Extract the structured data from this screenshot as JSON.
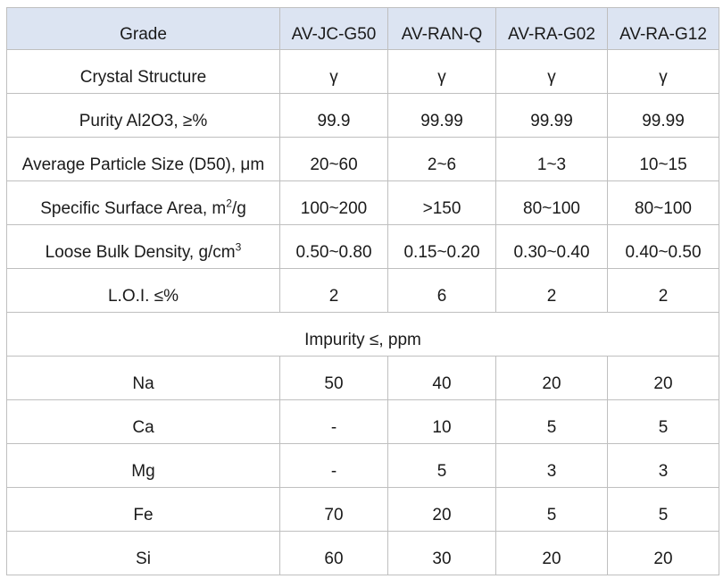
{
  "header": {
    "label": "Grade",
    "grades": [
      "AV-JC-G50",
      "AV-RAN-Q",
      "AV-RA-G02",
      "AV-RA-G12"
    ]
  },
  "properties": [
    {
      "key": "crystal",
      "label": "Crystal Structure",
      "values": [
        "γ",
        "γ",
        "γ",
        "γ"
      ]
    },
    {
      "key": "purity",
      "label": "Purity Al2O3, ≥%",
      "values": [
        "99.9",
        "99.99",
        "99.99",
        "99.99"
      ]
    },
    {
      "key": "particle-size",
      "label": "Average Particle Size (D50), μm",
      "values": [
        "20~60",
        "2~6",
        "1~3",
        "10~15"
      ]
    },
    {
      "key": "surface-area",
      "label_prefix": "Specific Surface Area, m",
      "label_sup": "2",
      "label_suffix": "/g",
      "values": [
        "100~200",
        ">150",
        "80~100",
        "80~100"
      ]
    },
    {
      "key": "bulk-density",
      "label_prefix": "Loose Bulk Density, g/cm",
      "label_sup": "3",
      "label_suffix": "",
      "values": [
        "0.50~0.80",
        "0.15~0.20",
        "0.30~0.40",
        "0.40~0.50"
      ]
    },
    {
      "key": "loi",
      "label": "L.O.I. ≤%",
      "values": [
        "2",
        "6",
        "2",
        "2"
      ]
    }
  ],
  "impurity_heading": "Impurity ≤, ppm",
  "impurities": [
    {
      "key": "na",
      "label": "Na",
      "values": [
        "50",
        "40",
        "20",
        "20"
      ]
    },
    {
      "key": "ca",
      "label": "Ca",
      "values": [
        "-",
        "10",
        "5",
        "5"
      ]
    },
    {
      "key": "mg",
      "label": "Mg",
      "values": [
        "-",
        "5",
        "3",
        "3"
      ]
    },
    {
      "key": "fe",
      "label": "Fe",
      "values": [
        "70",
        "20",
        "5",
        "5"
      ]
    },
    {
      "key": "si",
      "label": "Si",
      "values": [
        "60",
        "30",
        "20",
        "20"
      ]
    }
  ]
}
